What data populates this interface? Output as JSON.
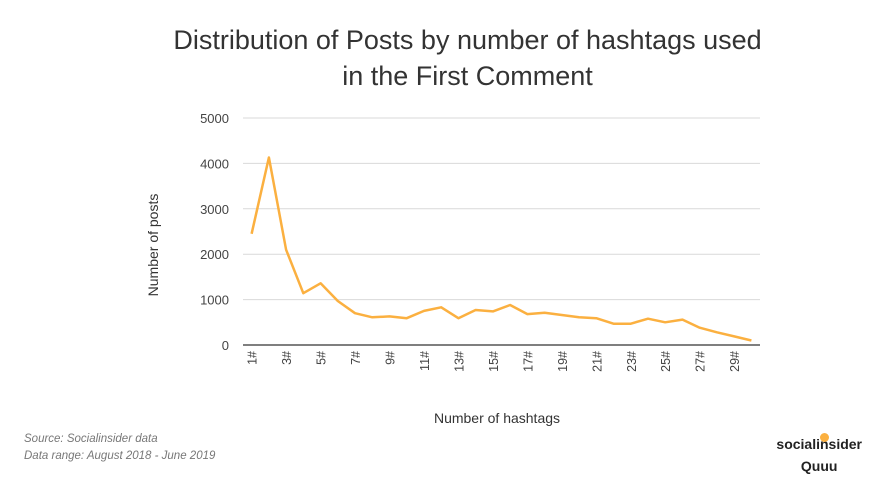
{
  "chart_data": {
    "type": "line",
    "title_lines": [
      "Distribution of Posts by number of hashtags used",
      "in the First Comment"
    ],
    "xlabel": "Number of hashtags",
    "ylabel": "Number of posts",
    "ylim": [
      0,
      5000
    ],
    "yticks": [
      0,
      1000,
      2000,
      3000,
      4000,
      5000
    ],
    "grid": true,
    "x": [
      "1#",
      "2#",
      "3#",
      "4#",
      "5#",
      "6#",
      "7#",
      "8#",
      "9#",
      "10#",
      "11#",
      "12#",
      "13#",
      "14#",
      "15#",
      "16#",
      "17#",
      "18#",
      "19#",
      "20#",
      "21#",
      "22#",
      "23#",
      "24#",
      "25#",
      "26#",
      "27#",
      "28#",
      "29#",
      "30#"
    ],
    "x_tick_labels_shown": [
      "1#",
      "3#",
      "5#",
      "7#",
      "9#",
      "11#",
      "13#",
      "15#",
      "17#",
      "19#",
      "21#",
      "23#",
      "25#",
      "27#",
      "29#"
    ],
    "series": [
      {
        "values": [
          2450,
          4130,
          2100,
          1140,
          1360,
          970,
          700,
          610,
          630,
          590,
          750,
          830,
          590,
          770,
          740,
          880,
          680,
          710,
          660,
          610,
          590,
          470,
          470,
          580,
          500,
          560,
          380,
          280,
          190,
          100
        ]
      }
    ]
  },
  "colors": {
    "line": "#FBB040",
    "grid": "#d9d9d9",
    "axis": "#333333"
  },
  "footer": {
    "source": "Source: Socialinsider data",
    "range": "Data range: August 2018 - June 2019"
  },
  "brand": {
    "main": "socialinsider",
    "sub": "Quuu",
    "dot_color": "#FBB040"
  }
}
